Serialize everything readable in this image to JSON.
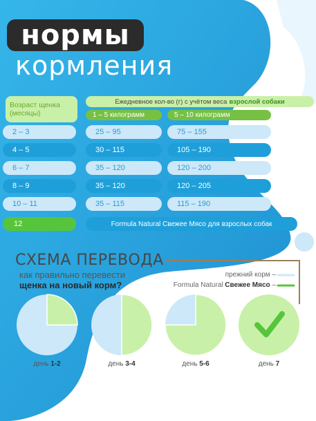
{
  "title": {
    "line1": "нормы",
    "line2": "кормления"
  },
  "table": {
    "age_header": "Возраст щенка (месяцы)",
    "daily_header_prefix": "Ежедневное кол-во (г) с учётом веса",
    "daily_header_bold": "взрослой собаки",
    "weight_col1": "1 – 5 килограмм",
    "weight_col2": "5 – 10 килограмм",
    "rows": [
      {
        "age": "2 – 3",
        "w1": "25 – 95",
        "w2": "75 – 155"
      },
      {
        "age": "4 – 5",
        "w1": "30 – 115",
        "w2": "105 – 190"
      },
      {
        "age": "6 – 7",
        "w1": "35 – 120",
        "w2": "120 – 200"
      },
      {
        "age": "8 – 9",
        "w1": "35 – 120",
        "w2": "120 – 205"
      },
      {
        "age": "10 – 11",
        "w1": "35 – 115",
        "w2": "115 – 190"
      }
    ],
    "last_age": "12",
    "last_note_prefix": "Formula Natural",
    "last_note_main": "Свежее Мясо для взрослых",
    "last_note_suffix": "собак"
  },
  "scheme": {
    "title": "СХЕМА ПЕРЕВОДА",
    "subtitle_line1": "как правильно перевести",
    "subtitle_line2": "щенка на новый корм?",
    "legend_old": "прежний корм –",
    "legend_new_prefix": "Formula Natural",
    "legend_new_bold": "Свежее Мясо",
    "legend_new_suffix": "–",
    "days": [
      {
        "prefix": "день",
        "value": "1-2",
        "new_fraction": 0.25
      },
      {
        "prefix": "день",
        "value": "3-4",
        "new_fraction": 0.5
      },
      {
        "prefix": "день",
        "value": "5-6",
        "new_fraction": 0.75
      },
      {
        "prefix": "день",
        "value": "7",
        "new_fraction": 1.0
      }
    ]
  },
  "colors": {
    "blue_dark": "#1e9fd9",
    "blue_light": "#cde8f8",
    "green": "#57c53b",
    "green_light": "#c9f0a8",
    "text_dark": "#2b2b2b"
  }
}
